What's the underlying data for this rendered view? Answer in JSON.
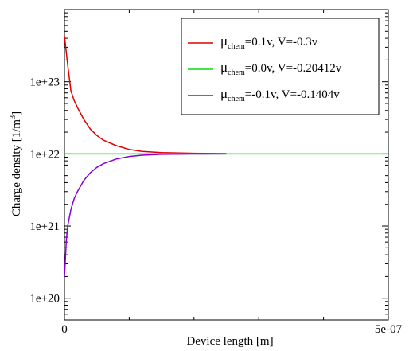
{
  "chart_data": {
    "type": "line",
    "title": "",
    "xlabel": "Device length [m]",
    "ylabel": "Charge density [1/m³]",
    "ylabel_parts": {
      "main": "Charge density [1/m",
      "exp": "3",
      "end": "]"
    },
    "xlim": [
      0,
      5e-07
    ],
    "ylim": [
      5e+19,
      1e+24
    ],
    "yscale": "log",
    "grid": false,
    "legend_position": "top-right",
    "x_ticks": [
      {
        "value": 0,
        "label": "0"
      },
      {
        "value": 5e-07,
        "label": "5e-07"
      }
    ],
    "x_minor_ticks": [
      1e-07,
      2e-07,
      3e-07,
      4e-07
    ],
    "y_ticks": [
      {
        "value": 1e+20,
        "label": "1e+20"
      },
      {
        "value": 1e+21,
        "label": "1e+21"
      },
      {
        "value": 1e+22,
        "label": "1e+22"
      },
      {
        "value": 1e+23,
        "label": "1e+23"
      }
    ],
    "series": [
      {
        "name": "μchem=0.1v, V=-0.3v",
        "legend": {
          "mu": "μ",
          "sub": "chem",
          "rest": "=0.1v, V=-0.3v"
        },
        "color": "#e00000",
        "x": [
          0,
          2e-09,
          5e-09,
          1e-08,
          1.5e-08,
          2e-08,
          3e-08,
          4e-08,
          5e-08,
          6e-08,
          8e-08,
          1e-07,
          1.2e-07,
          1.5e-07,
          2e-07,
          2.5e-07
        ],
        "y": [
          4.3e+23,
          3e+23,
          1.7e+23,
          7.5e+22,
          5.5e+22,
          4.4e+22,
          3e+22,
          2.2e+22,
          1.8e+22,
          1.55e+22,
          1.3e+22,
          1.15e+22,
          1.08e+22,
          1.04e+22,
          1.02e+22,
          1.01e+22
        ]
      },
      {
        "name": "μchem=0.0v, V=-0.20412v",
        "legend": {
          "mu": "μ",
          "sub": "chem",
          "rest": "=0.0v, V=-0.20412v"
        },
        "color": "#00e000",
        "x": [
          0,
          5e-07
        ],
        "y": [
          1e+22,
          1e+22
        ]
      },
      {
        "name": "μchem=-0.1v, V=-0.1404v",
        "legend": {
          "mu": "μ",
          "sub": "chem",
          "rest": "=-0.1v, V=-0.1404v"
        },
        "color": "#8a00d4",
        "x": [
          0,
          1e-09,
          3e-09,
          5e-09,
          1e-08,
          1.5e-08,
          2e-08,
          3e-08,
          4e-08,
          5e-08,
          6e-08,
          8e-08,
          1e-07,
          1.2e-07,
          1.5e-07,
          2e-07,
          2.5e-07
        ],
        "y": [
          2e+20,
          2.9e+20,
          6.5e+20,
          1e+21,
          1.7e+21,
          2.4e+21,
          3e+21,
          4.3e+21,
          5.5e+21,
          6.5e+21,
          7.3e+21,
          8.5e+21,
          9.2e+21,
          9.6e+21,
          9.85e+21,
          9.95e+21,
          1e+22
        ]
      }
    ]
  }
}
